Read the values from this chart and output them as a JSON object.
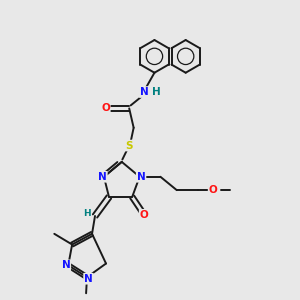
{
  "bg_color": "#e8e8e8",
  "bond_color": "#1a1a1a",
  "bond_width": 1.4,
  "atom_colors": {
    "N": "#1414ff",
    "O": "#ff1414",
    "S": "#c8c800",
    "H_label": "#008080",
    "C": "#1a1a1a"
  },
  "font_size_atom": 7.5,
  "font_size_small": 6.5
}
